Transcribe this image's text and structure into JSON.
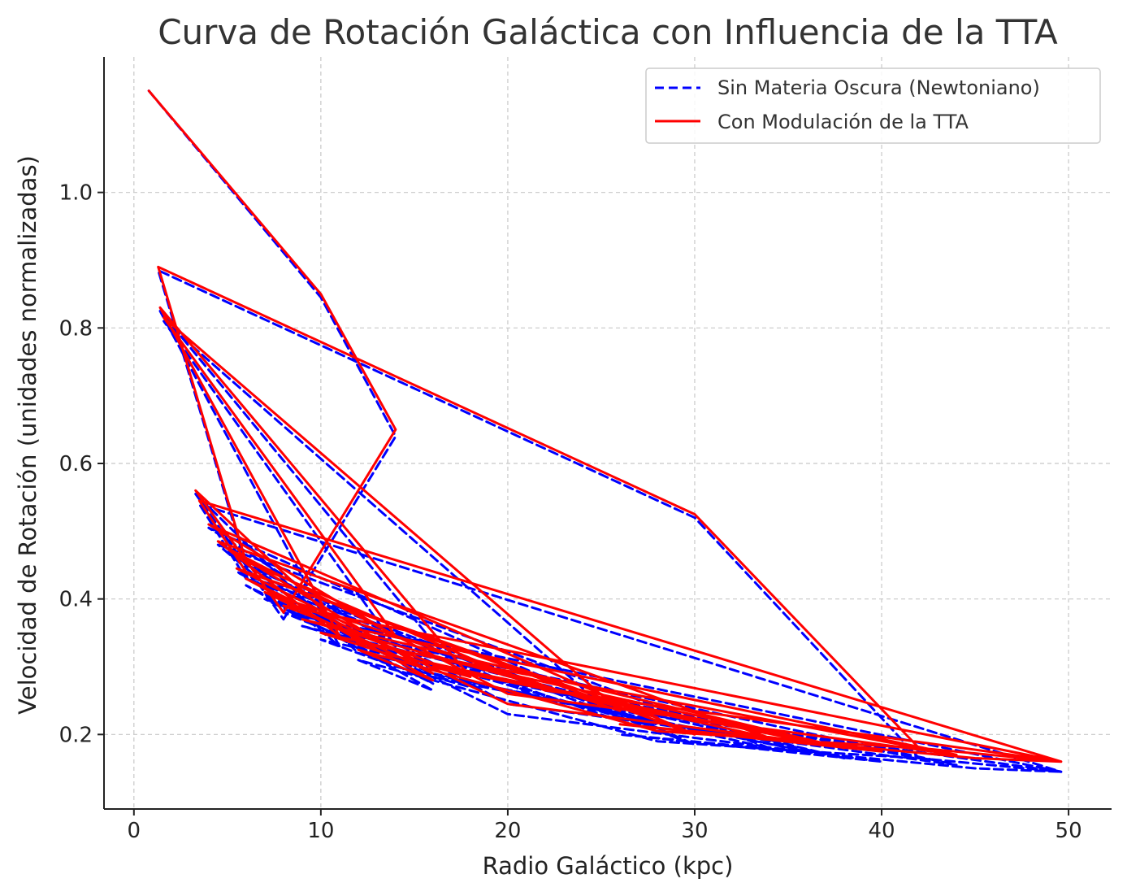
{
  "chart_data": {
    "type": "line",
    "title": "Curva de Rotación Galáctica con Influencia de la TTA",
    "xlabel": "Radio Galáctico (kpc)",
    "ylabel": "Velocidad de Rotación (unidades normalizadas)",
    "xlim": [
      -1.6,
      52.3
    ],
    "ylim": [
      0.09,
      1.2
    ],
    "xticks": [
      0,
      10,
      20,
      30,
      40,
      50
    ],
    "yticks": [
      0.2,
      0.4,
      0.6,
      0.8,
      1.0
    ],
    "xtick_labels": [
      "0",
      "10",
      "20",
      "30",
      "40",
      "50"
    ],
    "ytick_labels": [
      "0.2",
      "0.4",
      "0.6",
      "0.8",
      "1.0"
    ],
    "grid": true,
    "legend_position": "upper-right",
    "note_order": "points listed in plotted (unsorted) order",
    "series": [
      {
        "name": "Sin Materia Oscura (Newtoniano)",
        "color": "#0000ff",
        "style": "dashed",
        "x": [
          0.8,
          10.0,
          14.0,
          8.0,
          3.3,
          12.0,
          42.0,
          30.0,
          1.3,
          6.0,
          22.0,
          49.6,
          3.5,
          6.0,
          30.0,
          4.0,
          14.0,
          1.6,
          26.0,
          7.0,
          16.0,
          5.0,
          20.0,
          44.0,
          12.0,
          5.5,
          28.0,
          9.0,
          38.0,
          10.0,
          14.0,
          36.0,
          16.0,
          18.0,
          1.4,
          11.0,
          4.5,
          34.0,
          16.0,
          8.0,
          49.6,
          45.0,
          26.0,
          40.0,
          20.0,
          6.0,
          16.0,
          12.0,
          28.0,
          36.0,
          42.0,
          49.6
        ],
        "y": [
          1.15,
          0.845,
          0.64,
          0.37,
          0.555,
          0.32,
          0.165,
          0.52,
          0.885,
          0.45,
          0.25,
          0.145,
          0.54,
          0.43,
          0.185,
          0.505,
          0.33,
          0.81,
          0.22,
          0.4,
          0.275,
          0.47,
          0.245,
          0.155,
          0.345,
          0.44,
          0.21,
          0.36,
          0.165,
          0.34,
          0.3,
          0.175,
          0.285,
          0.27,
          0.825,
          0.33,
          0.48,
          0.18,
          0.29,
          0.38,
          0.145,
          0.15,
          0.2,
          0.16,
          0.23,
          0.42,
          0.265,
          0.31,
          0.19,
          0.175,
          0.165,
          0.145
        ]
      },
      {
        "name": "Con Modulación de la TTA",
        "color": "#ff0000",
        "style": "solid",
        "x": [
          0.8,
          10.0,
          14.0,
          8.0,
          3.3,
          12.0,
          42.0,
          30.0,
          1.3,
          6.0,
          22.0,
          49.6,
          3.5,
          6.0,
          30.0,
          4.0,
          14.0,
          1.6,
          26.0,
          7.0,
          16.0,
          5.0,
          20.0,
          44.0,
          12.0,
          5.5,
          28.0,
          9.0,
          38.0,
          10.0,
          14.0,
          36.0,
          16.0,
          18.0,
          1.4,
          11.0,
          4.5,
          34.0,
          16.0,
          8.0,
          49.6,
          45.0,
          26.0,
          40.0,
          20.0,
          6.0,
          16.0,
          12.0,
          28.0,
          36.0,
          42.0,
          49.6
        ],
        "y": [
          1.15,
          0.85,
          0.65,
          0.38,
          0.56,
          0.335,
          0.18,
          0.525,
          0.89,
          0.455,
          0.265,
          0.16,
          0.545,
          0.44,
          0.2,
          0.51,
          0.345,
          0.815,
          0.235,
          0.41,
          0.29,
          0.475,
          0.26,
          0.17,
          0.355,
          0.445,
          0.225,
          0.37,
          0.18,
          0.35,
          0.315,
          0.19,
          0.3,
          0.285,
          0.83,
          0.345,
          0.485,
          0.195,
          0.305,
          0.39,
          0.16,
          0.165,
          0.215,
          0.175,
          0.245,
          0.43,
          0.28,
          0.325,
          0.205,
          0.19,
          0.18,
          0.16
        ]
      }
    ]
  }
}
